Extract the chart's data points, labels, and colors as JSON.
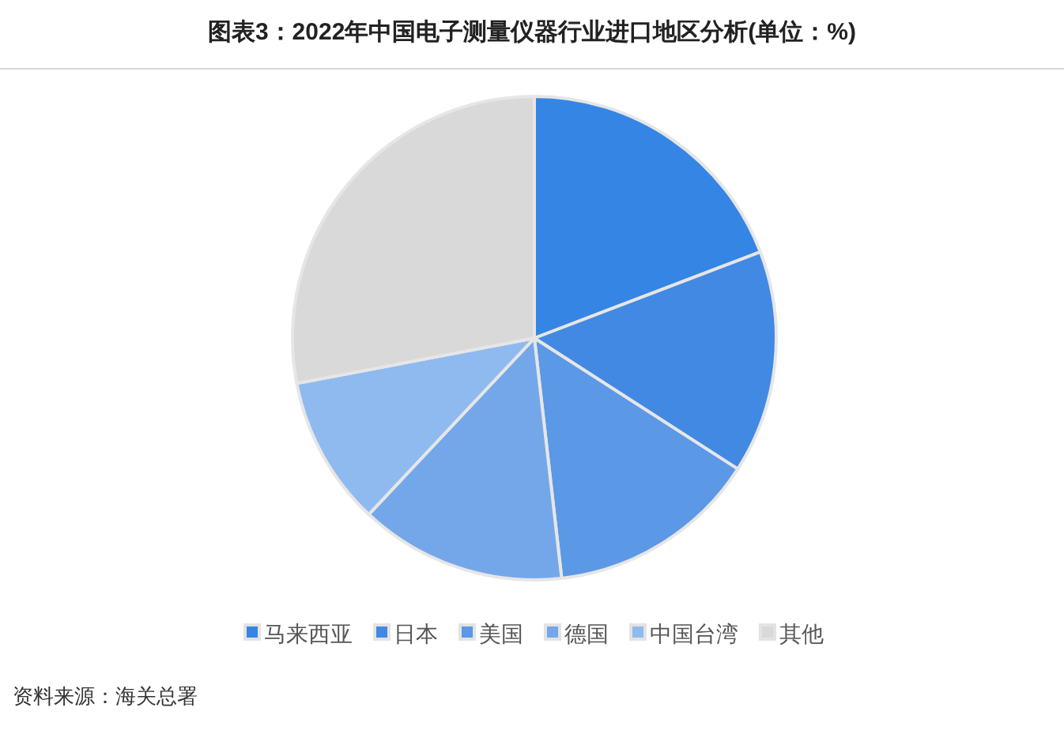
{
  "chart_data": {
    "type": "pie",
    "title": "图表3：2022年中国电子测量仪器行业进口地区分析(单位：%)",
    "categories": [
      "马来西亚",
      "日本",
      "美国",
      "德国",
      "中国台湾",
      "其他"
    ],
    "values": [
      19.2,
      14.9,
      14.1,
      13.8,
      10.0,
      28.0
    ],
    "colors": [
      "#3585e5",
      "#4289e3",
      "#5b98e6",
      "#74a7ea",
      "#8fbaf0",
      "#d9d9d9"
    ],
    "legend": "bottom",
    "annotations": [
      "资料来源：海关总署"
    ]
  }
}
